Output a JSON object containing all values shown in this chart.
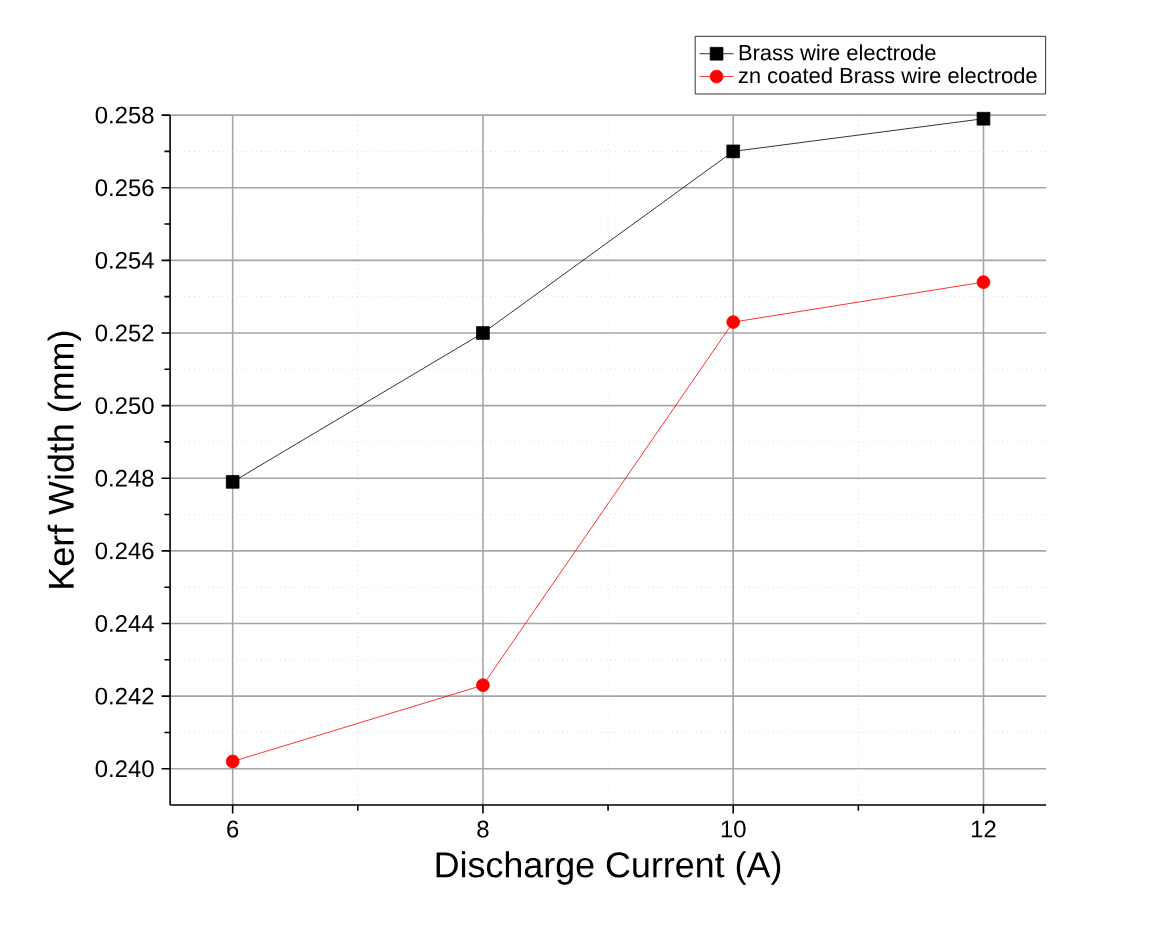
{
  "chart_data": {
    "type": "line",
    "xlabel": "Discharge Current (A)",
    "ylabel": "Kerf Width (mm)",
    "x": [
      6,
      8,
      10,
      12
    ],
    "series": [
      {
        "name": "Brass wire electrode",
        "color": "#000000",
        "marker": "square",
        "values": [
          0.2479,
          0.252,
          0.257,
          0.2579
        ]
      },
      {
        "name": "zn coated Brass wire electrode",
        "color": "#ff0000",
        "marker": "circle",
        "values": [
          0.2402,
          0.2423,
          0.2523,
          0.2534
        ]
      }
    ],
    "xlim": [
      5.5,
      12.5
    ],
    "ylim": [
      0.239,
      0.258
    ],
    "xticks": [
      6,
      8,
      10,
      12
    ],
    "yticks": [
      {
        "value": 0.24,
        "label": "0.240"
      },
      {
        "value": 0.242,
        "label": "0.242"
      },
      {
        "value": 0.244,
        "label": "0.244"
      },
      {
        "value": 0.246,
        "label": "0.246"
      },
      {
        "value": 0.248,
        "label": "0.248"
      },
      {
        "value": 0.25,
        "label": "0.250"
      },
      {
        "value": 0.252,
        "label": "0.252"
      },
      {
        "value": 0.254,
        "label": "0.254"
      },
      {
        "value": 0.256,
        "label": "0.256"
      },
      {
        "value": 0.258,
        "label": "0.258"
      }
    ],
    "grid": true,
    "legend": "top right",
    "line_style": "solid"
  }
}
